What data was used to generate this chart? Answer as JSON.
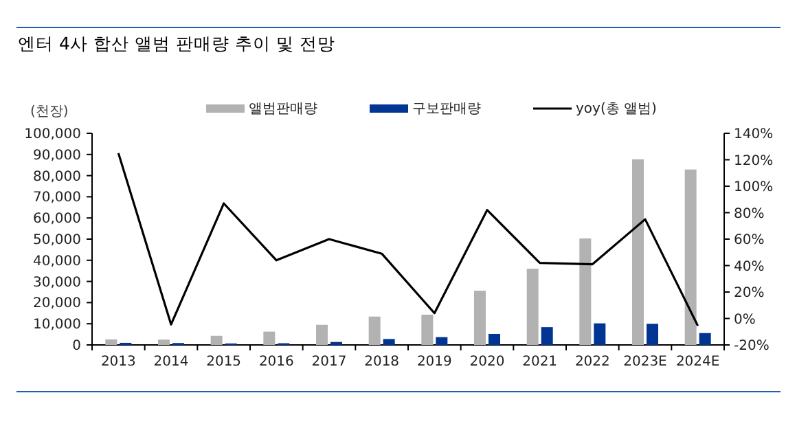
{
  "chart_data": {
    "type": "bar",
    "title": "엔터 4사 합산 앨범 판매량 추이 및 전망",
    "ylabel": "(천장)",
    "categories": [
      "2013",
      "2014",
      "2015",
      "2016",
      "2017",
      "2018",
      "2019",
      "2020",
      "2021",
      "2022",
      "2023E",
      "2024E"
    ],
    "series": [
      {
        "name": "앨범판매량",
        "color": "#b2b2b2",
        "values": [
          2600,
          2500,
          4300,
          6300,
          9500,
          13400,
          14300,
          25600,
          36000,
          50300,
          87700,
          82900
        ]
      },
      {
        "name": "구보판매량",
        "color": "#003594",
        "values": [
          1000,
          900,
          700,
          800,
          1400,
          2800,
          3700,
          5200,
          8400,
          10200,
          10000,
          5600
        ]
      },
      {
        "name": "yoy(총 앨범)",
        "type": "line",
        "axis": "y2",
        "color": "#000000",
        "values": [
          125,
          -4.5,
          87,
          44,
          60,
          49,
          4,
          82,
          42,
          41,
          75,
          -5.5
        ]
      }
    ],
    "ylim": [
      0,
      100000
    ],
    "yticks": [
      {
        "value": 0,
        "label": "0"
      },
      {
        "value": 10000,
        "label": "10,000"
      },
      {
        "value": 20000,
        "label": "20,000"
      },
      {
        "value": 30000,
        "label": "30,000"
      },
      {
        "value": 40000,
        "label": "40,000"
      },
      {
        "value": 50000,
        "label": "50,000"
      },
      {
        "value": 60000,
        "label": "60,000"
      },
      {
        "value": 70000,
        "label": "70,000"
      },
      {
        "value": 80000,
        "label": "80,000"
      },
      {
        "value": 90000,
        "label": "90,000"
      },
      {
        "value": 100000,
        "label": "100,000"
      }
    ],
    "y2lim": [
      -20,
      140
    ],
    "y2ticks": [
      {
        "value": -20,
        "label": "-20%"
      },
      {
        "value": 0,
        "label": "0%"
      },
      {
        "value": 20,
        "label": "20%"
      },
      {
        "value": 40,
        "label": "40%"
      },
      {
        "value": 60,
        "label": "60%"
      },
      {
        "value": 80,
        "label": "80%"
      },
      {
        "value": 100,
        "label": "100%"
      },
      {
        "value": 120,
        "label": "120%"
      },
      {
        "value": 140,
        "label": "140%"
      }
    ],
    "legend": "top",
    "grid": false,
    "marker": "none",
    "line_style": "solid"
  }
}
